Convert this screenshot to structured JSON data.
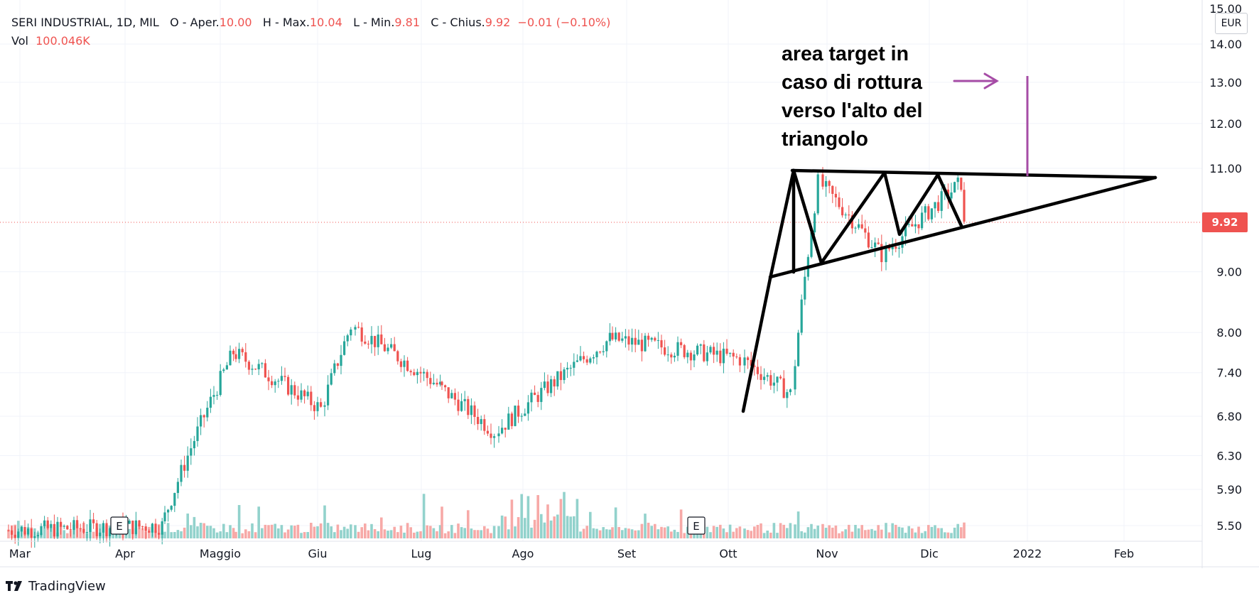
{
  "header": {
    "symbol": "SERI INDUSTRIAL, 1D, MIL",
    "open_label": "O - Aper.",
    "open_value": "10.00",
    "high_label": "H - Max.",
    "high_value": "10.04",
    "low_label": "L - Min.",
    "low_value": "9.81",
    "close_label": "C - Chius.",
    "close_value": "9.92",
    "change_value": "−0.01 (−0.10%)",
    "vol_label": "Vol",
    "vol_value": "100.046K"
  },
  "annotation": {
    "lines": [
      "area target in",
      "caso di rottura",
      "verso l'alto del",
      "triangolo"
    ]
  },
  "price_axis": {
    "currency": "EUR",
    "top_label": "15.00",
    "ticks": [
      "14.00",
      "13.00",
      "12.00",
      "11.00",
      "9.00",
      "8.00",
      "7.40",
      "6.80",
      "6.30",
      "5.90",
      "5.50"
    ],
    "last_price": "9.92",
    "scale": "log"
  },
  "time_axis": {
    "labels": [
      "Mar",
      "Apr",
      "Maggio",
      "Giu",
      "Lug",
      "Ago",
      "Set",
      "Ott",
      "Nov",
      "Dic",
      "2022",
      "Feb"
    ]
  },
  "events": [
    "E",
    "E"
  ],
  "brand": "TradingView",
  "colors": {
    "up": "#26a69a",
    "down": "#ef5350",
    "vol_up": "#92d2cc",
    "vol_down": "#f7a9a7",
    "arrow": "#a64ca6",
    "drawing": "#000000"
  },
  "chart_data": {
    "type": "candlestick",
    "title": "SERI INDUSTRIAL, 1D, MIL",
    "y_scale": "log",
    "ylim": [
      5.3,
      15.0
    ],
    "ohlc_last": {
      "open": 10.0,
      "high": 10.04,
      "low": 9.81,
      "close": 9.92,
      "change": -0.01,
      "change_pct": -0.1,
      "volume": "100.046K"
    },
    "segments": [
      {
        "period": "Mar",
        "from": 5.45,
        "to": 5.5
      },
      {
        "period": "Apr-Maggio",
        "from": 5.5,
        "to": 7.7
      },
      {
        "period": "Maggio-Giu",
        "from": 7.7,
        "to": 6.9
      },
      {
        "period": "Giu",
        "from": 6.9,
        "to": 8.1
      },
      {
        "period": "Giu-Lug",
        "from": 8.1,
        "to": 7.2
      },
      {
        "period": "Lug-Ago",
        "from": 7.2,
        "to": 6.6
      },
      {
        "period": "Ago",
        "from": 6.6,
        "to": 7.9
      },
      {
        "period": "Ago-Set",
        "from": 7.9,
        "to": 7.6
      },
      {
        "period": "Set-Ott",
        "from": 7.6,
        "to": 7.1
      },
      {
        "period": "Ott",
        "from": 7.1,
        "to": 10.7
      },
      {
        "period": "Nov",
        "from": 10.7,
        "to": 9.3
      },
      {
        "period": "Nov-Dic",
        "from": 9.3,
        "to": 10.7
      },
      {
        "period": "Dic",
        "from": 10.7,
        "to": 9.92
      }
    ],
    "trendlines": [
      {
        "name": "resistance",
        "from": [
          "Ott",
          10.95
        ],
        "to": [
          "Feb",
          10.8
        ]
      },
      {
        "name": "support",
        "from": [
          "Ott",
          8.95
        ],
        "to": [
          "Feb",
          10.8
        ]
      }
    ]
  }
}
